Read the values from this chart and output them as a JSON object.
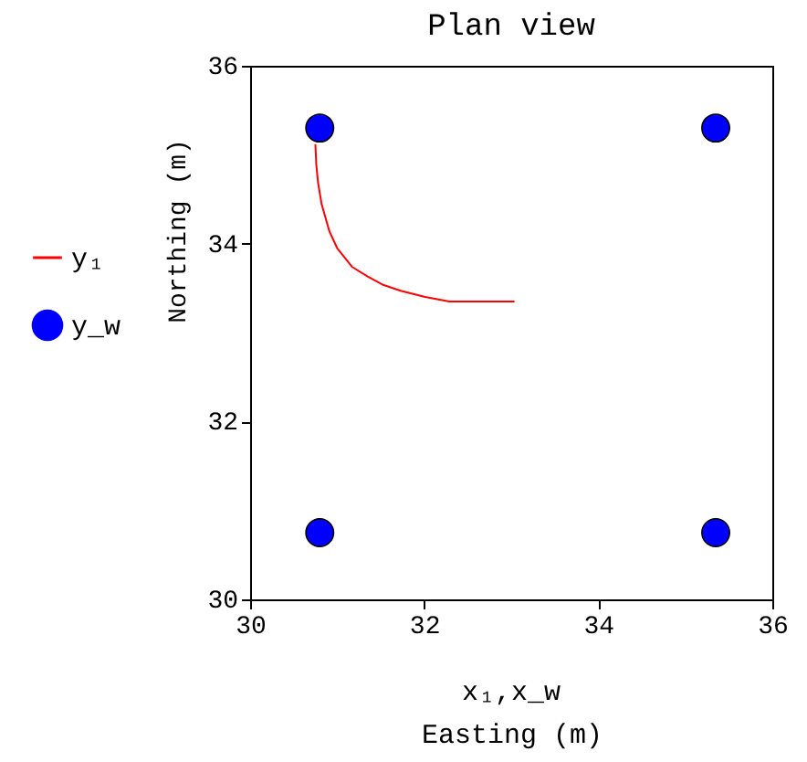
{
  "chart_data": {
    "type": "line",
    "title": "Plan view",
    "xlabel": "Easting (m)",
    "ylabel": "Northing (m)",
    "annotations": [
      "x₁,x_w"
    ],
    "xlim": [
      30,
      36
    ],
    "ylim": [
      30,
      36
    ],
    "xticks": [
      30,
      32,
      34,
      36
    ],
    "yticks": [
      30,
      32,
      34,
      36
    ],
    "legend": "left",
    "series": [
      {
        "name": "y₁",
        "color": "#ff0000",
        "x": [
          30.75,
          30.76,
          30.78,
          30.82,
          30.91,
          31.0,
          31.17,
          31.35,
          31.52,
          31.73,
          32.01,
          32.29,
          33.03
        ],
        "values": [
          35.11,
          34.89,
          34.69,
          34.45,
          34.14,
          33.95,
          33.74,
          33.63,
          33.54,
          33.47,
          33.4,
          33.35,
          33.35
        ]
      },
      {
        "name": "y_w",
        "color": "#0000ff",
        "type": "scatter",
        "marker": "circle",
        "x": [
          30.8,
          35.35,
          30.8,
          35.35
        ],
        "values": [
          35.3,
          35.3,
          30.75,
          30.75
        ]
      }
    ]
  }
}
